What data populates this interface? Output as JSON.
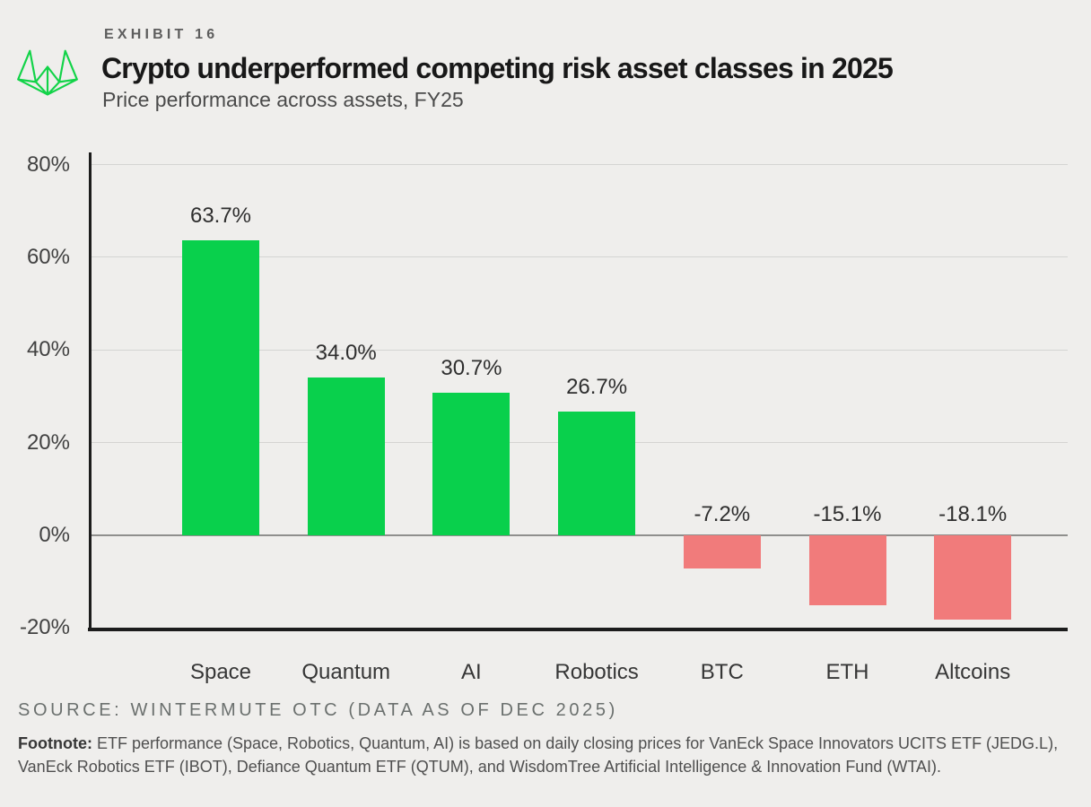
{
  "header": {
    "exhibit_label": "EXHIBIT 16",
    "title": "Crypto underperformed competing risk asset classes in 2025",
    "subtitle": "Price performance across assets, FY25"
  },
  "logo": {
    "name": "wintermute-logo",
    "color": "#12d348"
  },
  "chart_data": {
    "type": "bar",
    "title": "Crypto underperformed competing risk asset classes in 2025",
    "subtitle": "Price performance across assets, FY25",
    "categories": [
      "Space",
      "Quantum",
      "AI",
      "Robotics",
      "BTC",
      "ETH",
      "Altcoins"
    ],
    "values": [
      63.7,
      34.0,
      30.7,
      26.7,
      -7.2,
      -15.1,
      -18.1
    ],
    "value_labels": [
      "63.7%",
      "34.0%",
      "30.7%",
      "26.7%",
      "-7.2%",
      "-15.1%",
      "-18.1%"
    ],
    "xlabel": "",
    "ylabel": "",
    "ylim": [
      -20,
      80
    ],
    "yticks": [
      80,
      60,
      40,
      20,
      0,
      -20
    ],
    "ytick_labels": [
      "80%",
      "60%",
      "40%",
      "20%",
      "0%",
      "-20%"
    ],
    "grid": true,
    "legend": false,
    "colors": {
      "positive": "#09d04c",
      "negative": "#f17b7b",
      "gridline": "#d4d4d2",
      "zero_line": "#8f8f8d",
      "axis": "#1c1c1c"
    }
  },
  "footer": {
    "source": "SOURCE: WINTERMUTE OTC (DATA AS OF DEC 2025)",
    "footnote_label": "Footnote:",
    "footnote_text": " ETF performance (Space, Robotics, Quantum, AI) is based on daily closing prices for VanEck Space Innovators UCITS ETF (JEDG.L), VanEck Robotics ETF (IBOT), Defiance Quantum ETF (QTUM), and WisdomTree Artificial Intelligence & Innovation Fund (WTAI)."
  }
}
